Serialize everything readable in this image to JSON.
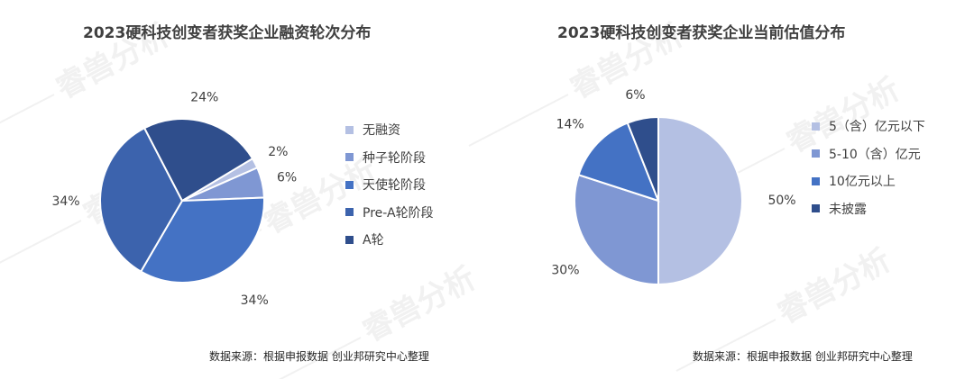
{
  "charts": {
    "left": {
      "title": "2023硬科技创变者获奖企业融资轮次分布",
      "source": "数据来源：根据申报数据 创业邦研究中心整理"
    },
    "right": {
      "title": "2023硬科技创变者获奖企业当前估值分布",
      "source": "数据来源：根据申报数据 创业邦研究中心整理"
    }
  },
  "chart_data": [
    {
      "type": "pie",
      "title": "2023硬科技创变者获奖企业融资轮次分布",
      "legend_position": "right",
      "categories": [
        "无融资",
        "种子轮阶段",
        "天使轮阶段",
        "Pre-A轮阶段",
        "A轮"
      ],
      "values": [
        2,
        6,
        34,
        34,
        24
      ],
      "labels": [
        "2%",
        "6%",
        "34%",
        "34%",
        "24%"
      ],
      "colors": [
        "#b4c0e3",
        "#7f97d3",
        "#4472c4",
        "#3c63ad",
        "#2f4e8c"
      ],
      "start_angle_deg": 59,
      "clockwise": true
    },
    {
      "type": "pie",
      "title": "2023硬科技创变者获奖企业当前估值分布",
      "legend_position": "right",
      "categories": [
        "5（含）亿元以下",
        "5-10（含）亿元",
        "10亿元以上",
        "未披露"
      ],
      "values": [
        50,
        30,
        14,
        6
      ],
      "labels": [
        "50%",
        "30%",
        "14%",
        "6%"
      ],
      "colors": [
        "#b4c0e3",
        "#7f97d3",
        "#4472c4",
        "#2f4e8c"
      ],
      "start_angle_deg": 0,
      "clockwise": true
    }
  ],
  "watermark": {
    "text": "睿兽分析",
    "color": "#f1f1f1"
  }
}
